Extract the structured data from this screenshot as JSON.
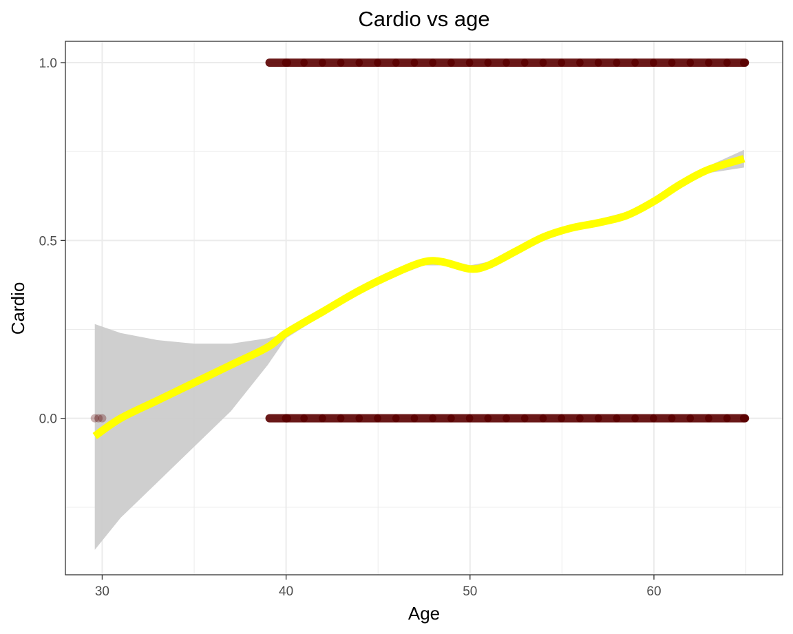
{
  "chart_data": {
    "type": "scatter",
    "title": "Cardio vs age",
    "xlabel": "Age",
    "ylabel": "Cardio",
    "xlim": [
      28,
      67
    ],
    "ylim": [
      -0.44,
      1.06
    ],
    "x_ticks": [
      30,
      40,
      50,
      60
    ],
    "x_tick_labels": [
      "30",
      "40",
      "50",
      "60"
    ],
    "y_ticks": [
      0.0,
      0.5,
      1.0
    ],
    "y_tick_labels": [
      "0.0",
      "0.5",
      "1.0"
    ],
    "grid": true,
    "legend": "none",
    "colors": {
      "points": "#5a0000",
      "smooth_line": "#ffff00",
      "confidence_band": "#cccccc",
      "grid": "#ebebeb",
      "panel_border": "#333333"
    },
    "series": [
      {
        "type": "scatter",
        "points": [
          {
            "x": 29.6,
            "y": 0
          },
          {
            "x": 29.8,
            "y": 0
          },
          {
            "x": 30.0,
            "y": 0
          },
          {
            "x": 39.1,
            "y": 0
          },
          {
            "x": 40.0,
            "y": 0
          },
          {
            "x": 41.0,
            "y": 0
          },
          {
            "x": 42.0,
            "y": 0
          },
          {
            "x": 43.0,
            "y": 0
          },
          {
            "x": 44.0,
            "y": 0
          },
          {
            "x": 45.0,
            "y": 0
          },
          {
            "x": 46.0,
            "y": 0
          },
          {
            "x": 47.0,
            "y": 0
          },
          {
            "x": 48.0,
            "y": 0
          },
          {
            "x": 49.0,
            "y": 0
          },
          {
            "x": 50.0,
            "y": 0
          },
          {
            "x": 51.0,
            "y": 0
          },
          {
            "x": 52.0,
            "y": 0
          },
          {
            "x": 53.0,
            "y": 0
          },
          {
            "x": 54.0,
            "y": 0
          },
          {
            "x": 55.0,
            "y": 0
          },
          {
            "x": 56.0,
            "y": 0
          },
          {
            "x": 57.0,
            "y": 0
          },
          {
            "x": 58.0,
            "y": 0
          },
          {
            "x": 59.0,
            "y": 0
          },
          {
            "x": 60.0,
            "y": 0
          },
          {
            "x": 61.0,
            "y": 0
          },
          {
            "x": 62.0,
            "y": 0
          },
          {
            "x": 63.0,
            "y": 0
          },
          {
            "x": 64.0,
            "y": 0
          },
          {
            "x": 64.9,
            "y": 0
          },
          {
            "x": 39.1,
            "y": 1
          },
          {
            "x": 40.0,
            "y": 1
          },
          {
            "x": 41.0,
            "y": 1
          },
          {
            "x": 42.0,
            "y": 1
          },
          {
            "x": 43.0,
            "y": 1
          },
          {
            "x": 44.0,
            "y": 1
          },
          {
            "x": 45.0,
            "y": 1
          },
          {
            "x": 46.0,
            "y": 1
          },
          {
            "x": 47.0,
            "y": 1
          },
          {
            "x": 48.0,
            "y": 1
          },
          {
            "x": 49.0,
            "y": 1
          },
          {
            "x": 50.0,
            "y": 1
          },
          {
            "x": 51.0,
            "y": 1
          },
          {
            "x": 52.0,
            "y": 1
          },
          {
            "x": 53.0,
            "y": 1
          },
          {
            "x": 54.0,
            "y": 1
          },
          {
            "x": 55.0,
            "y": 1
          },
          {
            "x": 56.0,
            "y": 1
          },
          {
            "x": 57.0,
            "y": 1
          },
          {
            "x": 58.0,
            "y": 1
          },
          {
            "x": 59.0,
            "y": 1
          },
          {
            "x": 60.0,
            "y": 1
          },
          {
            "x": 61.0,
            "y": 1
          },
          {
            "x": 62.0,
            "y": 1
          },
          {
            "x": 63.0,
            "y": 1
          },
          {
            "x": 64.0,
            "y": 1
          },
          {
            "x": 64.9,
            "y": 1
          }
        ]
      },
      {
        "type": "line",
        "x": [
          29.6,
          31,
          33,
          35,
          37,
          39,
          40,
          42,
          44,
          46,
          47.5,
          48.5,
          50,
          51,
          52.5,
          54,
          55.5,
          57,
          58.5,
          60,
          61.5,
          63,
          64.9
        ],
        "y": [
          -0.05,
          0.0,
          0.05,
          0.1,
          0.15,
          0.2,
          0.24,
          0.3,
          0.36,
          0.41,
          0.44,
          0.44,
          0.42,
          0.43,
          0.47,
          0.51,
          0.535,
          0.55,
          0.57,
          0.61,
          0.66,
          0.7,
          0.73
        ]
      },
      {
        "type": "area",
        "x": [
          29.6,
          31,
          33,
          35,
          37,
          39,
          40,
          42,
          44,
          46,
          47.5,
          48.5,
          50,
          51,
          52.5,
          54,
          55.5,
          57,
          58.5,
          60,
          61.5,
          63,
          64.9
        ],
        "lower": [
          -0.37,
          -0.28,
          -0.18,
          -0.08,
          0.02,
          0.15,
          0.225,
          0.29,
          0.35,
          0.4,
          0.43,
          0.43,
          0.41,
          0.42,
          0.46,
          0.5,
          0.525,
          0.54,
          0.56,
          0.6,
          0.65,
          0.69,
          0.705
        ],
        "upper": [
          0.265,
          0.24,
          0.22,
          0.21,
          0.21,
          0.225,
          0.24,
          0.305,
          0.365,
          0.42,
          0.45,
          0.45,
          0.43,
          0.44,
          0.48,
          0.515,
          0.545,
          0.56,
          0.58,
          0.62,
          0.67,
          0.71,
          0.755
        ]
      }
    ]
  }
}
